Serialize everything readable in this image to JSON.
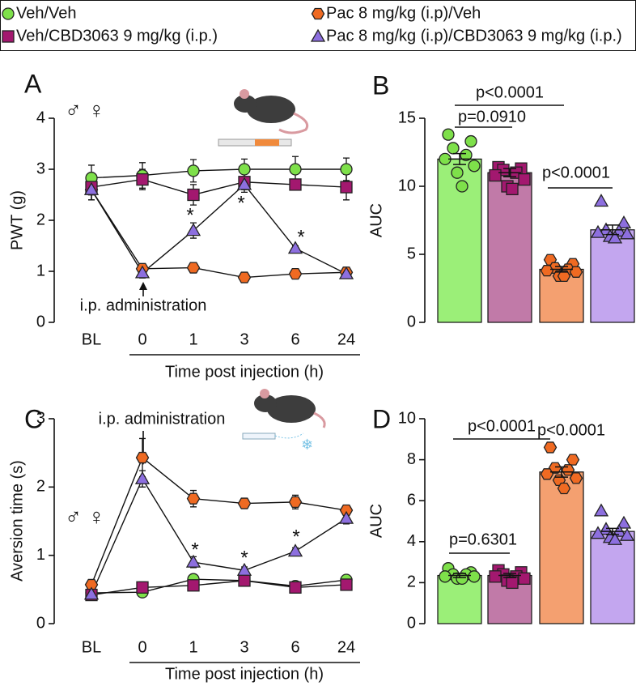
{
  "chart_data": [
    {
      "type": "line",
      "panel": "A",
      "sex": "♂ ♀",
      "ylabel": "PWT (g)",
      "xlabel": "Time post injection (h)",
      "annotation": "i.p. administration",
      "categories": [
        "BL",
        "0",
        "1",
        "3",
        "6",
        "24"
      ],
      "ylim": [
        0,
        4
      ],
      "yticks": [
        0,
        1,
        2,
        3,
        4
      ],
      "stars": [
        "*",
        "*",
        "*"
      ],
      "series": [
        {
          "name": "Veh/Veh",
          "color": "#7ee04a",
          "marker": "circle",
          "values": [
            2.83,
            2.88,
            2.97,
            3.0,
            3.0,
            3.0
          ],
          "errors": [
            0.25,
            0.25,
            0.22,
            0.2,
            0.25,
            0.22
          ]
        },
        {
          "name": "Pac 8 mg/kg (i.p)/Veh",
          "color": "#ef6a22",
          "marker": "hexagon",
          "values": [
            2.6,
            1.05,
            1.07,
            0.88,
            0.95,
            0.98
          ],
          "errors": [
            0.2,
            0.1,
            0.1,
            0.05,
            0.05,
            0.08
          ]
        },
        {
          "name": "Veh/CBD3063 9 mg/kg (i.p.)",
          "color": "#a3186f",
          "marker": "square",
          "values": [
            2.65,
            2.8,
            2.5,
            2.75,
            2.7,
            2.65
          ],
          "errors": [
            0.25,
            0.2,
            0.2,
            0.2,
            0.1,
            0.25
          ]
        },
        {
          "name": "Pac 8 mg/kg (i.p)/CBD3063 9 mg/kg (i.p.)",
          "color": "#8d6fdf",
          "marker": "triangle",
          "values": [
            2.6,
            0.97,
            1.8,
            2.7,
            1.45,
            0.95
          ],
          "errors": [
            0.2,
            0.1,
            0.15,
            0.1,
            0.05,
            0.08
          ]
        }
      ]
    },
    {
      "type": "bar",
      "panel": "B",
      "ylabel": "AUC",
      "categories": [
        null,
        null,
        null,
        null
      ],
      "ylim": [
        0,
        15
      ],
      "yticks": [
        0,
        5,
        10,
        15
      ],
      "colors": [
        "#9bef78",
        "#c17aa8",
        "#f4a070",
        "#c3a6ef"
      ],
      "values": [
        12.0,
        11.0,
        3.9,
        6.8
      ],
      "errors": [
        0.4,
        0.3,
        0.2,
        0.35
      ],
      "point_colors": [
        "#7ee04a",
        "#a3186f",
        "#ef6a22",
        "#8d6fdf"
      ],
      "markers": [
        "circle",
        "square",
        "hexagon",
        "triangle"
      ],
      "points": [
        [
          13.8,
          13.3,
          12.8,
          12.3,
          12.0,
          11.5,
          11.0,
          10.0
        ],
        [
          11.4,
          11.3,
          11.2,
          11.0,
          10.8,
          10.5,
          10.0,
          9.8
        ],
        [
          4.6,
          4.3,
          4.0,
          3.9,
          3.8,
          3.7,
          3.4,
          3.4
        ],
        [
          8.9,
          7.3,
          6.8,
          6.7,
          6.6,
          6.5,
          6.3,
          6.2
        ]
      ],
      "p_values": [
        "p<0.0001",
        "p=0.0910",
        "p<0.0001"
      ]
    },
    {
      "type": "line",
      "panel": "C",
      "sex": "♂ ♀",
      "ylabel": "Aversion time (s)",
      "xlabel": "Time post injection (h)",
      "annotation": "i.p. administration",
      "categories": [
        "BL",
        "0",
        "1",
        "3",
        "6",
        "24"
      ],
      "ylim": [
        0,
        3
      ],
      "yticks": [
        0,
        1,
        2,
        3
      ],
      "stars": [
        "*",
        "*",
        "*"
      ],
      "series": [
        {
          "color": "#7ee04a",
          "marker": "circle",
          "values": [
            0.45,
            0.46,
            0.65,
            0.63,
            0.55,
            0.64
          ],
          "errors": [
            0.05,
            0.06,
            0.05,
            0.04,
            0.04,
            0.04
          ]
        },
        {
          "color": "#ef6a22",
          "marker": "hexagon",
          "values": [
            0.57,
            2.43,
            1.83,
            1.76,
            1.78,
            1.66
          ],
          "errors": [
            0.04,
            0.28,
            0.12,
            0.07,
            0.1,
            0.06
          ]
        },
        {
          "color": "#a3186f",
          "marker": "square",
          "values": [
            0.42,
            0.53,
            0.56,
            0.63,
            0.53,
            0.57
          ],
          "errors": [
            0.04,
            0.08,
            0.04,
            0.04,
            0.04,
            0.04
          ]
        },
        {
          "color": "#8d6fdf",
          "marker": "triangle",
          "values": [
            0.43,
            2.12,
            0.9,
            0.78,
            1.06,
            1.54
          ],
          "errors": [
            0.04,
            0.12,
            0.08,
            0.05,
            0.05,
            0.08
          ]
        }
      ]
    },
    {
      "type": "bar",
      "panel": "D",
      "ylabel": "AUC",
      "categories": [
        null,
        null,
        null,
        null
      ],
      "ylim": [
        0,
        10
      ],
      "yticks": [
        0,
        2,
        4,
        6,
        8,
        10
      ],
      "colors": [
        "#9bef78",
        "#c17aa8",
        "#f4a070",
        "#c3a6ef"
      ],
      "values": [
        2.35,
        2.35,
        7.4,
        4.5
      ],
      "errors": [
        0.1,
        0.1,
        0.25,
        0.15
      ],
      "point_colors": [
        "#7ee04a",
        "#a3186f",
        "#ef6a22",
        "#8d6fdf"
      ],
      "markers": [
        "circle",
        "square",
        "hexagon",
        "triangle"
      ],
      "points": [
        [
          2.7,
          2.5,
          2.4,
          2.4,
          2.3,
          2.3,
          2.2,
          2.2
        ],
        [
          2.6,
          2.5,
          2.4,
          2.3,
          2.3,
          2.2,
          2.1,
          2.0
        ],
        [
          8.6,
          8.0,
          7.6,
          7.5,
          7.3,
          7.1,
          7.0,
          6.6
        ],
        [
          5.5,
          4.9,
          4.6,
          4.5,
          4.4,
          4.3,
          4.2,
          4.1
        ]
      ],
      "p_values": [
        "p<0.0001",
        "p<0.0001",
        "p=0.6301"
      ]
    }
  ]
}
